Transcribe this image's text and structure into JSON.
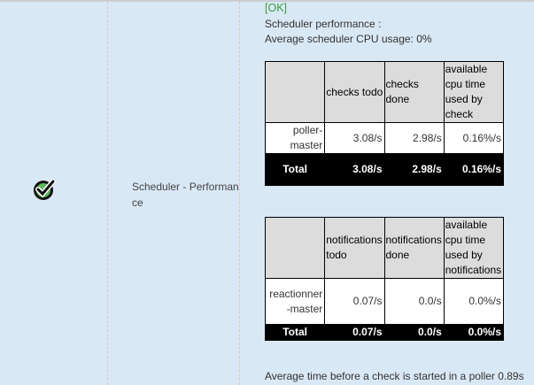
{
  "status_icon": "ok-check-icon",
  "service_name": "Scheduler - Performance",
  "status": "[OK]",
  "line1": "Scheduler performance :",
  "line2": "Average scheduler CPU usage: 0%",
  "table1": {
    "headers": [
      "",
      "checks todo",
      "checks done",
      "available cpu time used by check"
    ],
    "rows": [
      [
        "poller-master",
        "3.08/s",
        "2.98/s",
        "0.16%/s"
      ]
    ],
    "total": [
      "Total",
      "3.08/s",
      "2.98/s",
      "0.16%/s"
    ]
  },
  "table2": {
    "headers": [
      "",
      "notifications todo",
      "notifications done",
      "available cpu time used by notifications"
    ],
    "rows": [
      [
        "reactionner-master",
        "0.07/s",
        "0.0/s",
        "0.0%/s"
      ]
    ],
    "total": [
      "Total",
      "0.07/s",
      "0.0/s",
      "0.0%/s"
    ]
  },
  "footer": "Average time before a check is started in a poller 0.89s",
  "colors": {
    "background": "#d9e8f5",
    "ok": "#3aa03a",
    "icon_green": "#5cb85c"
  }
}
